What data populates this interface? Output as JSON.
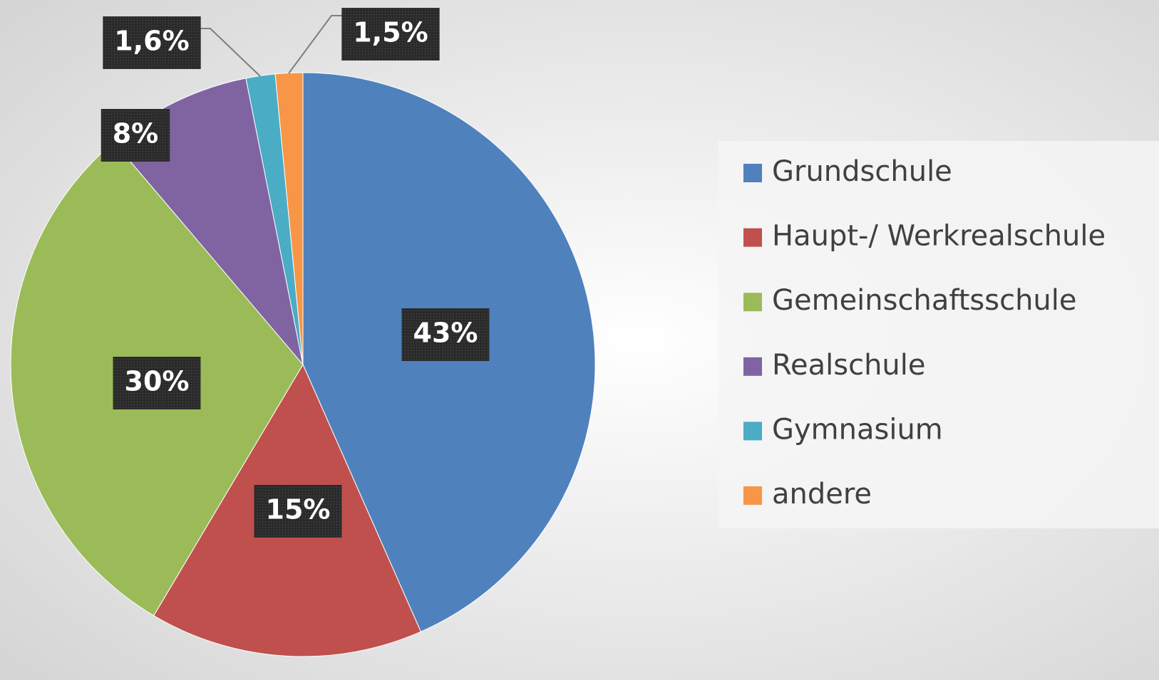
{
  "chart_data": {
    "type": "pie",
    "categories": [
      "Grundschule",
      "Haupt-/ Werkrealschule",
      "Gemeinschaftsschule",
      "Realschule",
      "Gymnasium",
      "andere"
    ],
    "values": [
      43,
      15,
      30,
      8,
      1.6,
      1.5
    ],
    "value_labels": [
      "43%",
      "15%",
      "30%",
      "8%",
      "1,6%",
      "1,5%"
    ],
    "colors": [
      "#4f81bd",
      "#c0504d",
      "#9bbb59",
      "#8064a2",
      "#4bacc6",
      "#f79646"
    ],
    "legend": "right"
  }
}
